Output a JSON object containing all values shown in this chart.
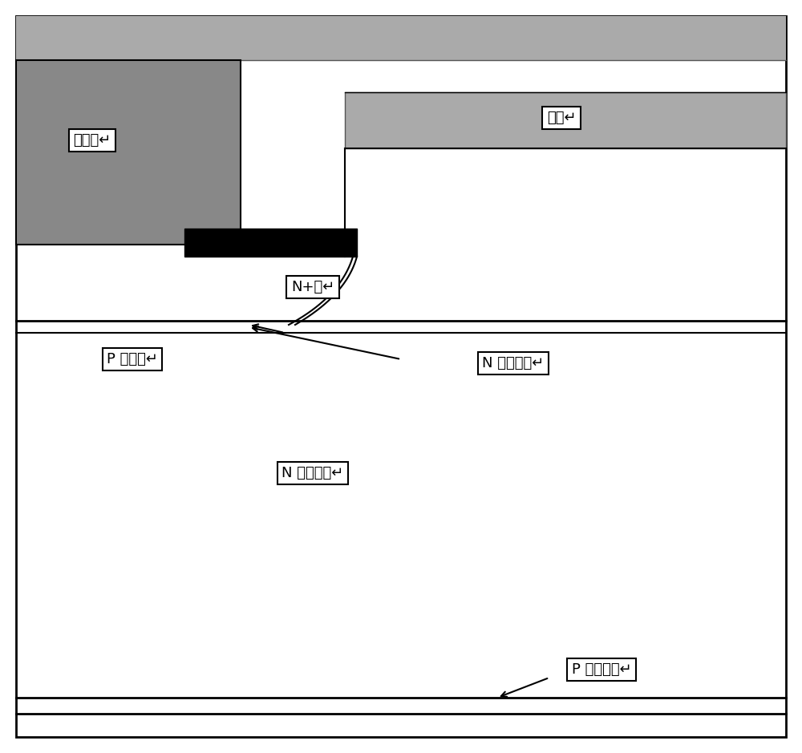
{
  "fig_width": 10.0,
  "fig_height": 9.39,
  "labels": {
    "emitter": "发射极↵",
    "gate": "栊极↵",
    "nplus": "N+区↵",
    "pbody": "P 型体区↵",
    "nenh": "N 型增强层↵",
    "ndrift": "N 型漂移区↵",
    "pcollector": "P 型集电区↵"
  },
  "gray_top": "#aaaaaa",
  "gray_emitter_block": "#888888",
  "gray_gate": "#aaaaaa"
}
